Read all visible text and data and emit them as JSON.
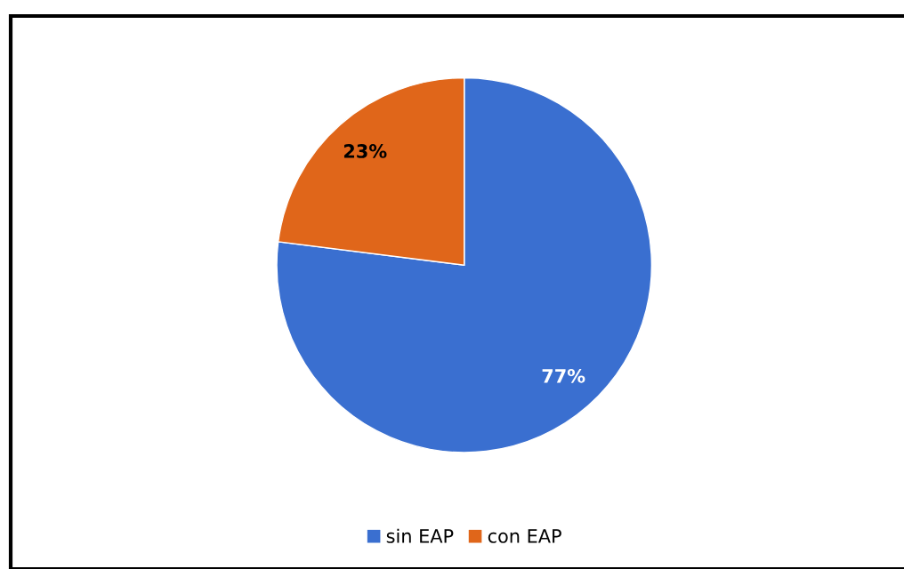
{
  "chart_data": {
    "type": "pie",
    "categories": [
      "sin EAP",
      "con EAP"
    ],
    "values": [
      77,
      23
    ],
    "colors": [
      "#3a6fd0",
      "#e0661a"
    ],
    "value_labels": [
      "77%",
      "23%"
    ],
    "legend": "bottom"
  }
}
